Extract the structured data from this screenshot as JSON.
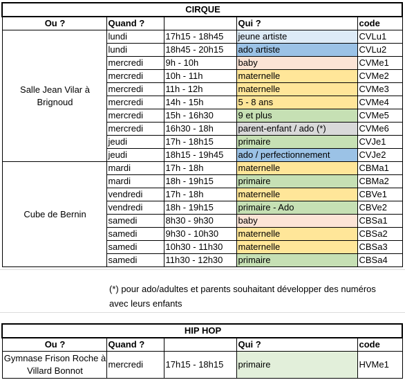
{
  "cirque": {
    "title": "CIRQUE",
    "headers": [
      "Ou ?",
      "Quand ?",
      "",
      "Qui ?",
      "code"
    ],
    "places": [
      "Salle Jean Vilar à Brignoud",
      "Cube de Bernin"
    ],
    "rows": [
      {
        "day": "lundi",
        "time": "17h15 - 18h45",
        "who": "jeune artiste",
        "code": "CVLu1",
        "color": "#ddebf7"
      },
      {
        "day": "lundi",
        "time": "18h45 - 20h15",
        "who": "ado artiste",
        "code": "CVLu2",
        "color": "#9bc2e6"
      },
      {
        "day": "mercredi",
        "time": "9h - 10h",
        "who": "baby",
        "code": "CVMe1",
        "color": "#fce4d6"
      },
      {
        "day": "mercredi",
        "time": "10h - 11h",
        "who": "maternelle",
        "code": "CVMe2",
        "color": "#ffe699"
      },
      {
        "day": "mercredi",
        "time": "11h - 12h",
        "who": "maternelle",
        "code": "CVMe3",
        "color": "#ffe699"
      },
      {
        "day": "mercredi",
        "time": "14h - 15h",
        "who": "5 - 8 ans",
        "code": "CVMe4",
        "color": "#ffe699"
      },
      {
        "day": "mercredi",
        "time": "15h - 16h30",
        "who": "9 et plus",
        "code": "CVMe5",
        "color": "#c6e0b4"
      },
      {
        "day": "mercredi",
        "time": "16h30 - 18h",
        "who": "parent-enfant / ado (*)",
        "code": "CVMe6",
        "color": "#d9d9d9"
      },
      {
        "day": "jeudi",
        "time": "17h - 18h15",
        "who": "primaire",
        "code": "CVJe1",
        "color": "#c6e0b4"
      },
      {
        "day": "jeudi",
        "time": "18h15 - 19h45",
        "who": "ado / perfectionnement",
        "code": "CVJe2",
        "color": "#9bc2e6"
      },
      {
        "day": "mardi",
        "time": "17h - 18h",
        "who": "maternelle",
        "code": "CBMa1",
        "color": "#ffe699"
      },
      {
        "day": "mardi",
        "time": "18h - 19h15",
        "who": "primaire",
        "code": "CBMa2",
        "color": "#c6e0b4"
      },
      {
        "day": "vendredi",
        "time": "17h - 18h",
        "who": "maternelle",
        "code": "CBVe1",
        "color": "#ffe699"
      },
      {
        "day": "vendredi",
        "time": "18h - 19h15",
        "who": "primaire - Ado",
        "code": "CBVe2",
        "color": "#c6e0b4"
      },
      {
        "day": "samedi",
        "time": "8h30 - 9h30",
        "who": "baby",
        "code": "CBSa1",
        "color": "#fce4d6"
      },
      {
        "day": "samedi",
        "time": "9h30 - 10h30",
        "who": "maternelle",
        "code": "CBSa2",
        "color": "#ffe699"
      },
      {
        "day": "samedi",
        "time": "10h30 - 11h30",
        "who": "maternelle",
        "code": "CBSa3",
        "color": "#ffe699"
      },
      {
        "day": "samedi",
        "time": "11h30 - 12h30",
        "who": "primaire",
        "code": "CBSa4",
        "color": "#c6e0b4"
      }
    ],
    "note": "(*) pour ado/adultes et parents souhaitant développer des numéros avec leurs enfants"
  },
  "hiphop": {
    "title": "HIP HOP",
    "headers": [
      "Ou ?",
      "Quand ?",
      "",
      "Qui ?",
      "code"
    ],
    "row": {
      "place": "Gymnase Frison Roche à Villard Bonnot",
      "day": "mercredi",
      "time": "17h15 - 18h15",
      "who": "primaire",
      "code": "HVMe1",
      "color": "#e2efda"
    }
  }
}
